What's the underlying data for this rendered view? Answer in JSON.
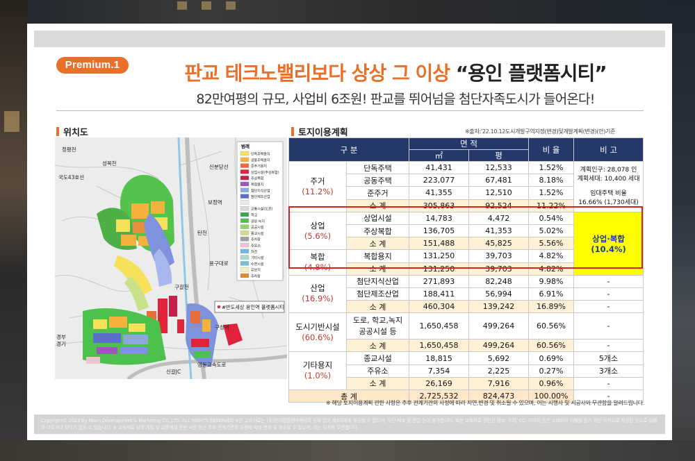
{
  "badge": "Premium.1",
  "title_main": "판교 테크노밸리보다 상상 그 이상",
  "title_quote": "“용인 플랫폼시티”",
  "subtitle": "82만여평의 규모, 사업비 6조원! 판교를 뛰어넘을 첨단자족도시가 들어온다!",
  "left_section_title": "위치도",
  "right_section_title": "토지이용계획",
  "source_note": "※출처:'22.10.12도시개발구역지정(변경)및개발계획(변경)(안)기준",
  "map": {
    "labels": {
      "jeongpyeong": "정평천",
      "seongbok": "성복천",
      "route43": "국도43호선",
      "tancheon": "탄천",
      "sinbun": "신분당선",
      "bojeong": "보정역",
      "kugal": "구갈천",
      "yongin_expressway": "용구대로",
      "gyeongbu": "경부",
      "gyeonggi": "경기",
      "singal": "신갈JC",
      "gyeongbu_expressway": "영동고속도로",
      "gugal_station": "구성역"
    },
    "legend_title": "범례",
    "legend_items": [
      {
        "label": "단독주택용지",
        "color": "#f7e05a"
      },
      {
        "label": "공동주택용지",
        "color": "#f5b13c"
      },
      {
        "label": "준주거용지",
        "color": "#e96d3c"
      },
      {
        "label": "상업시설(주상복합)",
        "color": "#e0233a"
      },
      {
        "label": "주상복합",
        "color": "#c71f4a"
      },
      {
        "label": "복합용지",
        "color": "#9b59b6"
      },
      {
        "label": "첨단지식산업",
        "color": "#8ea6e0"
      },
      {
        "label": "첨단제조산업",
        "color": "#5b6fc8"
      },
      {
        "label": "",
        "color": "#e9e9e9"
      },
      {
        "label": "교통시설(도로)",
        "color": "#d9d9d9"
      },
      {
        "label": "학교",
        "color": "#3aa655"
      },
      {
        "label": "공원·녹지",
        "color": "#4cc24c"
      },
      {
        "label": "공공시설",
        "color": "#8ed36e"
      },
      {
        "label": "종교시설",
        "color": "#c9e28a"
      },
      {
        "label": "주차장",
        "color": "#a0a0a0"
      },
      {
        "label": "주유소",
        "color": "#f2c4d0"
      },
      {
        "label": "하천",
        "color": "#72b6e4"
      },
      {
        "label": "기타시설",
        "color": "#a7d7c5"
      },
      {
        "label": "수변시설",
        "color": "#6fc0d0"
      },
      {
        "label": "유보지",
        "color": "#f3f3b0"
      },
      {
        "label": "주차장",
        "color": "#e08a30"
      }
    ],
    "callout": "#반도세상 용인역 플랫폼시티"
  },
  "table": {
    "headers": {
      "category": "구 분",
      "area": "면 적",
      "m2": "㎡",
      "pyeong": "평",
      "ratio": "비 율",
      "remark": "비 고"
    },
    "groups": [
      {
        "name": "주거",
        "pct": "(11.2%)",
        "rows": [
          {
            "item": "단독주택",
            "m2": "41,431",
            "pyeong": "12,533",
            "ratio": "1.52%"
          },
          {
            "item": "공동주택",
            "m2": "223,077",
            "pyeong": "67,481",
            "ratio": "8.18%"
          },
          {
            "item": "준주거",
            "m2": "41,355",
            "pyeong": "12,510",
            "ratio": "1.52%"
          }
        ],
        "subtotal": {
          "item": "소 계",
          "m2": "305,863",
          "pyeong": "92,524",
          "ratio": "11.22%"
        },
        "remark_lines": [
          "계획인구: 28,078 인",
          "계획세대: 10,400 세대",
          "임대주택 비율",
          "16.66% (1,730세대)"
        ]
      },
      {
        "name": "상업",
        "pct": "(5.6%)",
        "rows": [
          {
            "item": "상업시설",
            "m2": "14,783",
            "pyeong": "4,472",
            "ratio": "0.54%"
          },
          {
            "item": "주상복합",
            "m2": "136,705",
            "pyeong": "41,353",
            "ratio": "5.02%"
          }
        ],
        "subtotal": {
          "item": "소 계",
          "m2": "151,488",
          "pyeong": "45,825",
          "ratio": "5.56%"
        }
      },
      {
        "name": "복합",
        "pct": "(4.8%)",
        "rows": [
          {
            "item": "복합용지",
            "m2": "131,250",
            "pyeong": "39,703",
            "ratio": "4.82%"
          }
        ],
        "subtotal": {
          "item": "소 계",
          "m2": "131,250",
          "pyeong": "39,703",
          "ratio": "4.82%"
        }
      },
      {
        "name": "산업",
        "pct": "(16.9%)",
        "rows": [
          {
            "item": "첨단지식산업",
            "m2": "271,893",
            "pyeong": "82,248",
            "ratio": "9.98%",
            "remark": "-"
          },
          {
            "item": "첨단제조산업",
            "m2": "188,411",
            "pyeong": "56,994",
            "ratio": "6.91%",
            "remark": "-"
          }
        ],
        "subtotal": {
          "item": "소 계",
          "m2": "460,304",
          "pyeong": "139,242",
          "ratio": "16.89%",
          "remark": "-"
        }
      },
      {
        "name": "도시기반시설",
        "pct": "(60.6%)",
        "rows": [
          {
            "item": "도로, 학교,녹지",
            "item2": "공공시설 등",
            "m2": "1,650,458",
            "pyeong": "499,264",
            "ratio": "60.56%",
            "remark": "-"
          }
        ],
        "subtotal": {
          "item": "소 계",
          "m2": "1,650,458",
          "pyeong": "499,264",
          "ratio": "60.56%",
          "remark": "-"
        }
      },
      {
        "name": "기타용지",
        "pct": "(1.0%)",
        "rows": [
          {
            "item": "종교시설",
            "m2": "18,815",
            "pyeong": "5,692",
            "ratio": "0.69%",
            "remark": "5개소"
          },
          {
            "item": "주유소",
            "m2": "7,354",
            "pyeong": "2,225",
            "ratio": "0.27%",
            "remark": "3개소"
          }
        ],
        "subtotal": {
          "item": "소 계",
          "m2": "26,169",
          "pyeong": "7,916",
          "ratio": "0.96%",
          "remark": "-"
        }
      }
    ],
    "commercial_remark": {
      "line1": "상업·복합",
      "line2": "(10.4%)"
    },
    "total": {
      "label": "총 계",
      "m2": "2,725,532",
      "pyeong": "824,473",
      "ratio": "100.00%",
      "remark": "-"
    }
  },
  "footnote": "※ 해당 토지이용계획 관한 사항은 추후 관계기관의 사정에 따라 지연,변경 및 취소될 수 있으며, 이는 시행사 및 시공사와 무관함을 알려드립니다.",
  "copyright": "Copyright© 2023 By Moon Development & Marketing CO.,LTD. ALL RIGHTS RESERVED  ※본 교육자료는 (주)문디벨롭앤마케팅의 동의 없이 제3자에게 제공할 수 없으며, 무단 배포 및 편집 등이 불가합니다. 또한 교육자료 관련된 정보, 수치, CG, 이미지 등은 소비자의 이해를 돕기 위한 목적으로 작성된 것으로 실제와 다르거나 차이가 있을 수 있습니다. ※ 교육자료 상의 개발 및 교통계획 관련 사항 등은 추후 관계기관의 사정에 따라 변경 및 취소될 수 있으며, 이는 당사와 무관합니다."
}
